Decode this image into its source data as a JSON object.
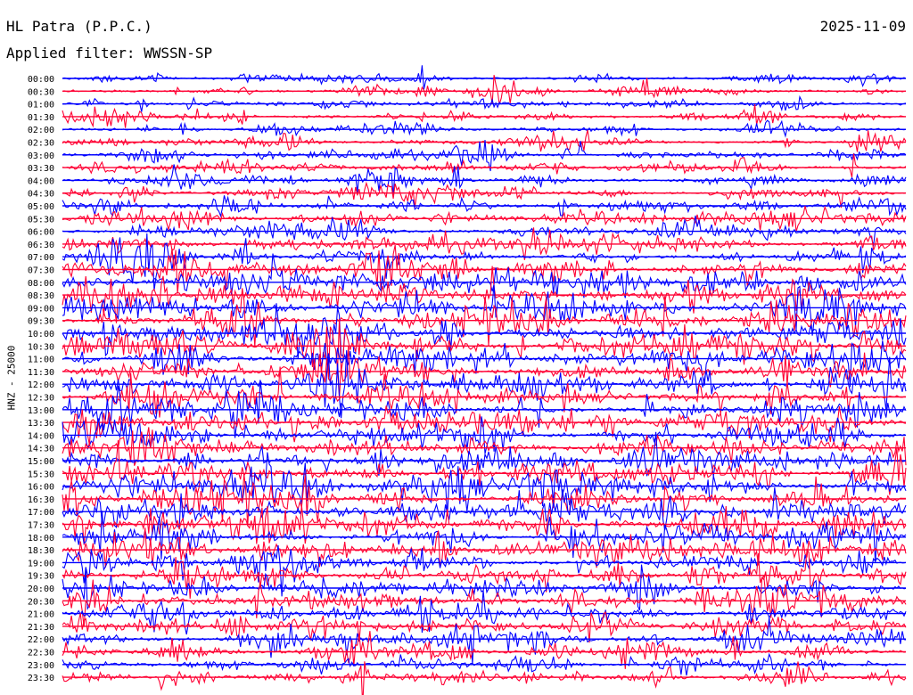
{
  "header": {
    "station": "HL Patra (P.P.C.)",
    "filter": "Applied filter: WWSSN-SP",
    "date": "2025-11-09"
  },
  "channel_label": "HNZ - 25000",
  "colors": {
    "odd_rows": "#0000ff",
    "even_rows": "#ff0033",
    "background": "#ffffff",
    "text": "#000000"
  },
  "chart_data": {
    "type": "line",
    "subtype": "helicorder",
    "title": "HL Patra (P.P.C.)",
    "subtitle": "Applied filter: WWSSN-SP",
    "date": "2025-11-09",
    "ylabel": "HNZ - 25000",
    "row_interval_minutes": 30,
    "row_labels": [
      "00:00",
      "00:30",
      "01:00",
      "01:30",
      "02:00",
      "02:30",
      "03:00",
      "03:30",
      "04:00",
      "04:30",
      "05:00",
      "05:30",
      "06:00",
      "06:30",
      "07:00",
      "07:30",
      "08:00",
      "08:30",
      "09:00",
      "09:30",
      "10:00",
      "10:30",
      "11:00",
      "11:30",
      "12:00",
      "12:30",
      "13:00",
      "13:30",
      "14:00",
      "14:30",
      "15:00",
      "15:30",
      "16:00",
      "16:30",
      "17:00",
      "17:30",
      "18:00",
      "18:30",
      "19:00",
      "19:30",
      "20:00",
      "20:30",
      "21:00",
      "21:30",
      "22:00",
      "22:30",
      "23:00",
      "23:30"
    ],
    "relative_activity": [
      0.35,
      0.38,
      0.35,
      0.4,
      0.4,
      0.45,
      0.45,
      0.5,
      0.5,
      0.55,
      0.6,
      0.65,
      0.65,
      0.7,
      0.8,
      0.85,
      0.95,
      1.0,
      1.0,
      1.0,
      1.0,
      1.0,
      1.0,
      1.0,
      0.95,
      0.95,
      0.95,
      0.95,
      0.95,
      0.95,
      0.95,
      0.95,
      0.95,
      0.95,
      0.95,
      0.95,
      0.95,
      0.95,
      0.9,
      0.9,
      0.85,
      0.85,
      0.8,
      0.8,
      0.75,
      0.7,
      0.65,
      0.6
    ],
    "series_colors": [
      "#0000ff",
      "#ff0033"
    ]
  }
}
